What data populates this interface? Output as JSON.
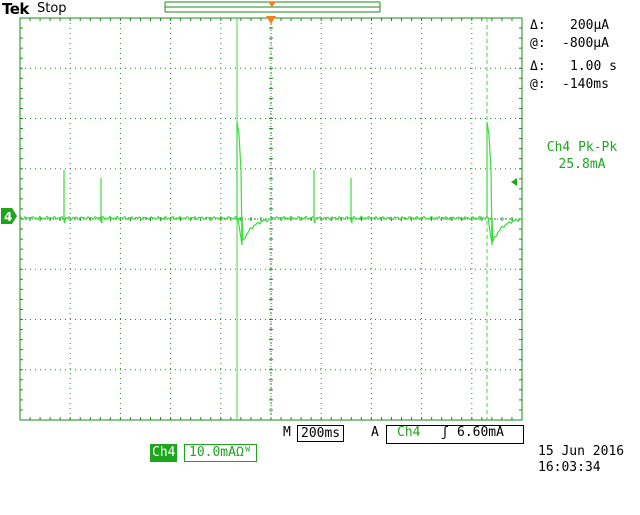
{
  "header": {
    "brand": "Tek",
    "run_state": "Stop"
  },
  "cursor_readout": {
    "delta_v_symbol": "Δ:",
    "delta_v": "200μA",
    "at_v_symbol": "@:",
    "at_v": "-800μA",
    "delta_t_symbol": "Δ:",
    "delta_t": "1.00 s",
    "at_t_symbol": "@:",
    "at_t": "-140ms"
  },
  "measurement": {
    "label": "Ch4 Pk-Pk",
    "value": "25.8mA"
  },
  "timebase": {
    "prefix": "M",
    "value": "200ms"
  },
  "trigger": {
    "mode": "A",
    "channel": "Ch4",
    "slope_icon": "rising-edge-icon",
    "slope_glyph": "ʃ",
    "level": "6.60mA"
  },
  "channel": {
    "name": "Ch4",
    "scale": "10.0mAΩᵂ",
    "marker": "4"
  },
  "datetime": {
    "date": "15 Jun  2016",
    "time": "16:03:34"
  },
  "colors": {
    "trace": "#3ddc3d",
    "channel": "#1ea51e",
    "graticule": "#1e8a1e",
    "trigger_marker": "#f08020"
  }
}
